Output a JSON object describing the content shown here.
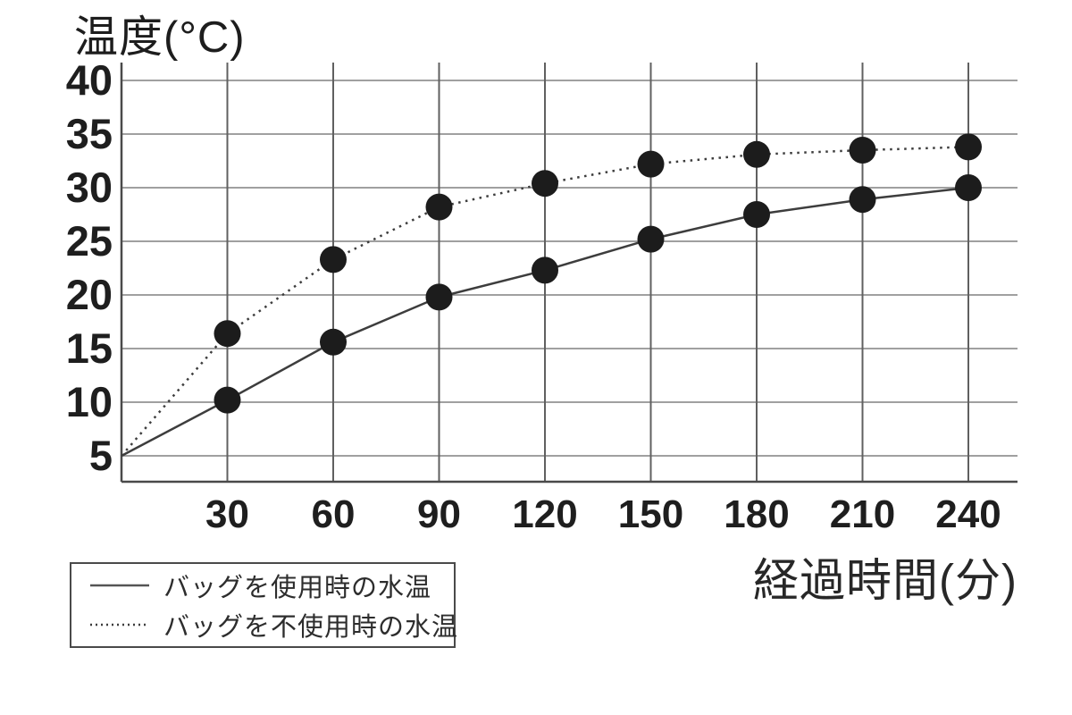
{
  "chart_data": {
    "type": "line",
    "title": "",
    "ylabel": "温度(°C)",
    "xlabel": "経過時間(分)",
    "x": [
      30,
      60,
      90,
      120,
      150,
      180,
      210,
      240
    ],
    "x_tick_labels": [
      "30",
      "60",
      "90",
      "120",
      "150",
      "180",
      "210",
      "240"
    ],
    "y_ticks": [
      40,
      35,
      30,
      25,
      20,
      15,
      10,
      5
    ],
    "xlim": [
      0,
      254
    ],
    "ylim": [
      2.6,
      41.7
    ],
    "grid": "both",
    "legend_position": "bottom-left",
    "series": [
      {
        "name": "バッグを使用時の水温",
        "line_style": "solid",
        "start": {
          "x": 0,
          "y": 5
        },
        "values": [
          10.2,
          15.6,
          19.8,
          22.3,
          25.2,
          27.5,
          28.9,
          30.0
        ]
      },
      {
        "name": "バッグを不使用時の水温",
        "line_style": "dotted",
        "start": {
          "x": 0,
          "y": 5
        },
        "values": [
          16.4,
          23.3,
          28.2,
          30.4,
          32.2,
          33.1,
          33.5,
          33.8
        ]
      }
    ],
    "colors": {
      "line": "#3d3d3d",
      "marker": "#1c1c1c",
      "grid_horizontal": "#818181",
      "grid_vertical": "#606060",
      "axis": "#4a4a4a",
      "text": "#1e1e1e",
      "legend_border": "#4a4a4a",
      "background": "#ffffff"
    }
  }
}
